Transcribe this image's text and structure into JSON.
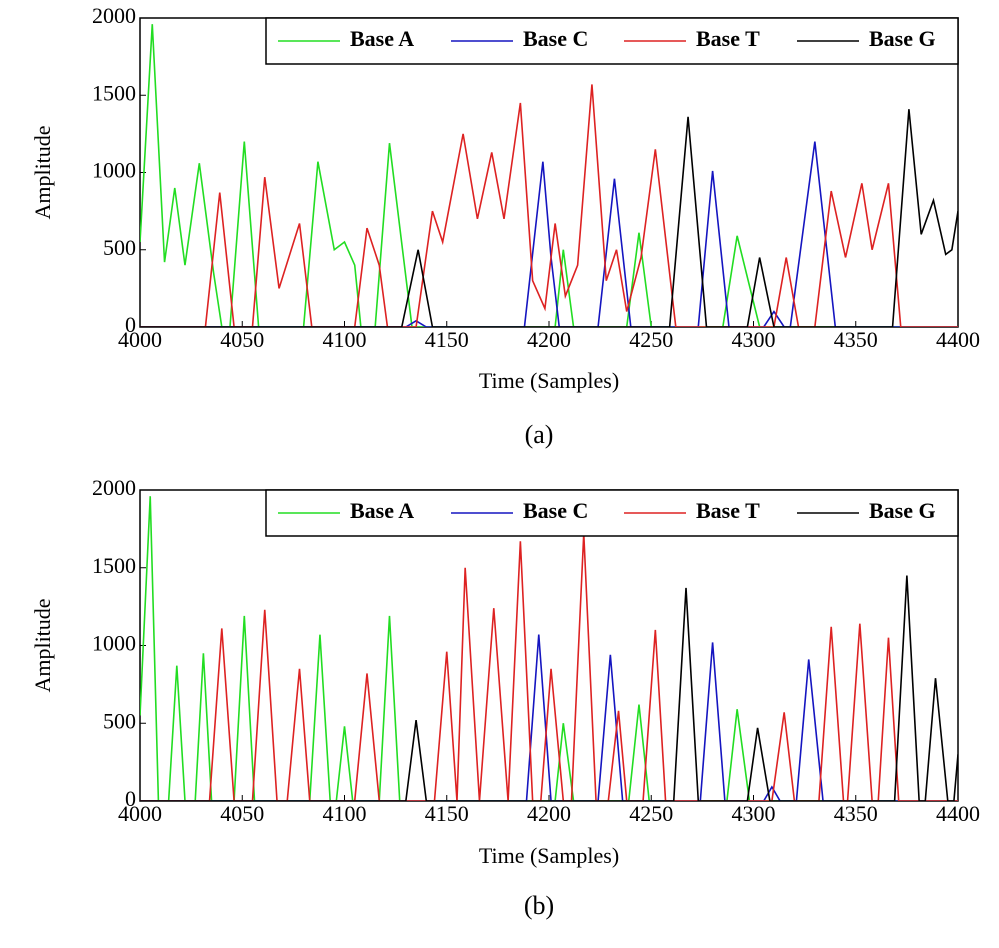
{
  "chart_data": [
    {
      "type": "line",
      "caption": "(a)",
      "xlabel": "Time (Samples)",
      "ylabel": "Amplitude",
      "xlim": [
        4000,
        4400
      ],
      "xticks": [
        4000,
        4050,
        4100,
        4150,
        4200,
        4250,
        4300,
        4350,
        4400
      ],
      "ylim": [
        0,
        2000
      ],
      "yticks": [
        0,
        500,
        1000,
        1500,
        2000
      ],
      "legend": "top-right",
      "series": [
        {
          "name": "Base A",
          "color": "#22dd22",
          "x": [
            4000,
            4006,
            4012,
            4017,
            4022,
            4029,
            4036,
            4040,
            4044,
            4051,
            4058,
            4080,
            4087,
            4095,
            4100,
            4105,
            4108,
            4115,
            4122,
            4133,
            4203,
            4207,
            4212,
            4238,
            4244,
            4250,
            4285,
            4292,
            4303,
            4400
          ],
          "values": [
            550,
            1960,
            420,
            900,
            400,
            1060,
            350,
            0,
            0,
            1200,
            0,
            0,
            1070,
            500,
            550,
            400,
            0,
            0,
            1190,
            0,
            0,
            500,
            0,
            0,
            610,
            0,
            0,
            590,
            0,
            0
          ]
        },
        {
          "name": "Base C",
          "color": "#1515c0",
          "x": [
            4000,
            4130,
            4135,
            4140,
            4188,
            4197,
            4201,
            4205,
            4224,
            4232,
            4240,
            4273,
            4280,
            4288,
            4305,
            4310,
            4315,
            4318,
            4330,
            4340,
            4400
          ],
          "values": [
            0,
            0,
            40,
            0,
            0,
            1070,
            450,
            0,
            0,
            960,
            0,
            0,
            1010,
            0,
            0,
            100,
            0,
            0,
            1200,
            0,
            0
          ]
        },
        {
          "name": "Base T",
          "color": "#dd2222",
          "x": [
            4000,
            4032,
            4039,
            4046,
            4055,
            4061,
            4068,
            4078,
            4084,
            4105,
            4111,
            4117,
            4121,
            4135,
            4143,
            4148,
            4158,
            4165,
            4172,
            4178,
            4186,
            4192,
            4198,
            4203,
            4208,
            4214,
            4221,
            4228,
            4233,
            4238,
            4245,
            4252,
            4262,
            4310,
            4316,
            4322,
            4330,
            4338,
            4345,
            4353,
            4358,
            4366,
            4372,
            4400
          ],
          "values": [
            0,
            0,
            870,
            0,
            0,
            970,
            250,
            670,
            0,
            0,
            640,
            400,
            0,
            0,
            750,
            550,
            1250,
            700,
            1130,
            700,
            1450,
            300,
            120,
            670,
            200,
            400,
            1570,
            300,
            500,
            100,
            450,
            1150,
            0,
            0,
            450,
            0,
            0,
            880,
            450,
            930,
            500,
            930,
            0,
            0
          ]
        },
        {
          "name": "Base G",
          "color": "#000000",
          "x": [
            4000,
            4128,
            4136,
            4143,
            4259,
            4268,
            4277,
            4297,
            4303,
            4310,
            4368,
            4376,
            4382,
            4388,
            4394,
            4397,
            4400
          ],
          "values": [
            0,
            0,
            500,
            0,
            0,
            1360,
            0,
            0,
            450,
            0,
            0,
            1410,
            600,
            820,
            470,
            500,
            750
          ]
        }
      ]
    },
    {
      "type": "line",
      "caption": "(b)",
      "xlabel": "Time (Samples)",
      "ylabel": "Amplitude",
      "xlim": [
        4000,
        4400
      ],
      "xticks": [
        4000,
        4050,
        4100,
        4150,
        4200,
        4250,
        4300,
        4350,
        4400
      ],
      "ylim": [
        0,
        2000
      ],
      "yticks": [
        0,
        500,
        1000,
        1500,
        2000
      ],
      "legend": "top-right",
      "series": [
        {
          "name": "Base A",
          "color": "#22dd22",
          "x": [
            4000,
            4005,
            4009,
            4014,
            4018,
            4022,
            4027,
            4031,
            4035,
            4046,
            4051,
            4056,
            4083,
            4088,
            4093,
            4096,
            4100,
            4104,
            4117,
            4122,
            4127,
            4203,
            4207,
            4212,
            4239,
            4244,
            4249,
            4287,
            4292,
            4298,
            4400
          ],
          "values": [
            550,
            1960,
            0,
            0,
            870,
            0,
            0,
            950,
            0,
            0,
            1190,
            0,
            0,
            1070,
            0,
            0,
            480,
            0,
            0,
            1190,
            0,
            0,
            500,
            0,
            0,
            620,
            0,
            0,
            590,
            0,
            0
          ]
        },
        {
          "name": "Base C",
          "color": "#1515c0",
          "x": [
            4000,
            4189,
            4195,
            4201,
            4224,
            4230,
            4236,
            4274,
            4280,
            4286,
            4305,
            4309,
            4313,
            4321,
            4327,
            4334,
            4400
          ],
          "values": [
            0,
            0,
            1070,
            0,
            0,
            940,
            0,
            0,
            1020,
            0,
            0,
            90,
            0,
            0,
            910,
            0,
            0
          ]
        },
        {
          "name": "Base T",
          "color": "#dd2222",
          "x": [
            4000,
            4034,
            4040,
            4046,
            4055,
            4061,
            4067,
            4072,
            4078,
            4083,
            4105,
            4111,
            4117,
            4144,
            4150,
            4155,
            4159,
            4166,
            4173,
            4180,
            4186,
            4192,
            4196,
            4201,
            4207,
            4211,
            4217,
            4223,
            4229,
            4234,
            4238,
            4246,
            4252,
            4257,
            4309,
            4315,
            4320,
            4332,
            4338,
            4344,
            4346,
            4352,
            4358,
            4361,
            4366,
            4371,
            4400
          ],
          "values": [
            0,
            0,
            1110,
            0,
            0,
            1230,
            0,
            0,
            850,
            0,
            0,
            820,
            0,
            0,
            960,
            0,
            1500,
            0,
            1240,
            0,
            1670,
            0,
            0,
            850,
            0,
            0,
            1720,
            0,
            0,
            580,
            0,
            0,
            1100,
            0,
            0,
            570,
            0,
            0,
            1120,
            0,
            0,
            1140,
            0,
            0,
            1050,
            0,
            0
          ]
        },
        {
          "name": "Base G",
          "color": "#000000",
          "x": [
            4000,
            4130,
            4135,
            4140,
            4261,
            4267,
            4273,
            4297,
            4302,
            4308,
            4369,
            4375,
            4381,
            4384,
            4389,
            4395,
            4398,
            4400
          ],
          "values": [
            0,
            0,
            520,
            0,
            0,
            1370,
            0,
            0,
            470,
            0,
            0,
            1450,
            0,
            0,
            790,
            0,
            0,
            300
          ]
        }
      ]
    }
  ]
}
